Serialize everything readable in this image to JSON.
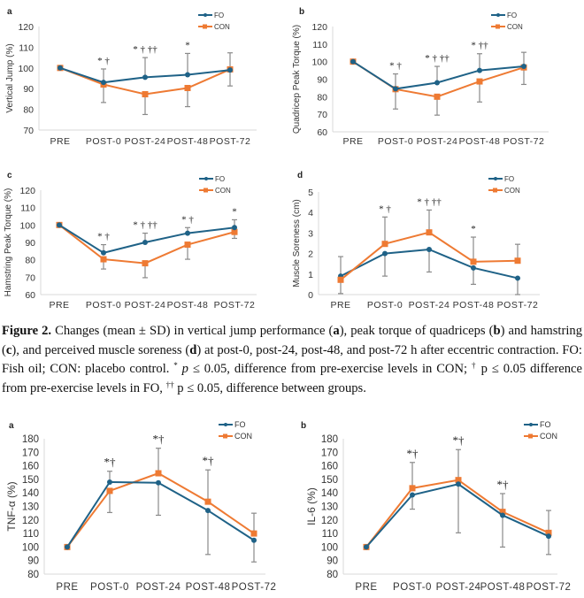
{
  "colors": {
    "FO": "#1f6287",
    "CON": "#ee7a33",
    "axis": "#d9d9d9",
    "errbar": "#8a8a8a"
  },
  "caption": {
    "figure_label": "Figure 2.",
    "segments": [
      {
        "t": " Changes (mean ± SD) in vertical jump performance ("
      },
      {
        "t": "a",
        "b": true
      },
      {
        "t": "), peak torque of quadriceps ("
      },
      {
        "t": "b",
        "b": true
      },
      {
        "t": ") and hamstring ("
      },
      {
        "t": "c",
        "b": true
      },
      {
        "t": "), and perceived muscle soreness ("
      },
      {
        "t": "d",
        "b": true
      },
      {
        "t": ") at post-0, post-24, post-48, and post-72 h after eccentric contraction. FO: Fish oil; CON: placebo control. "
      },
      {
        "t": "*",
        "sup": true
      },
      {
        "t": " "
      },
      {
        "t": "p",
        "i": true
      },
      {
        "t": " ≤ 0.05, difference from pre-exercise levels in CON; "
      },
      {
        "t": "†",
        "sup": true
      },
      {
        "t": " p ≤ 0.05 difference from pre-exercise levels in FO, "
      },
      {
        "t": "††",
        "sup": true
      },
      {
        "t": " p ≤ 0.05, difference between groups."
      }
    ]
  },
  "chart_data": [
    {
      "id": "a",
      "type": "line",
      "panel_label": "a",
      "ylabel": "Vertical Jump (%)",
      "xlabel": "",
      "categories": [
        "PRE",
        "POST-0",
        "POST-24",
        "POST-48",
        "POST-72"
      ],
      "ylim": [
        70,
        120
      ],
      "yticks": [
        70,
        80,
        90,
        100,
        110,
        120
      ],
      "grid": false,
      "legend": "top-right",
      "series": [
        {
          "name": "FO",
          "values": [
            100,
            93,
            95.5,
            96.7,
            99
          ],
          "err_up": [
            null,
            99.5,
            105,
            107,
            107.3
          ],
          "err_down": [
            null,
            null,
            null,
            null,
            null
          ]
        },
        {
          "name": "CON",
          "values": [
            100,
            92,
            87.3,
            90.3,
            99.3
          ],
          "err_up": [
            null,
            null,
            null,
            null,
            null
          ],
          "err_down": [
            null,
            83.3,
            77.5,
            81.3,
            91.3
          ]
        }
      ],
      "annotations": [
        "",
        "* †",
        "* † ††",
        "*",
        ""
      ]
    },
    {
      "id": "b",
      "type": "line",
      "panel_label": "b",
      "ylabel": "Quadricep Peak Torque (%)",
      "xlabel": "",
      "categories": [
        "PRE",
        "POST-0",
        "POST-24",
        "POST-48",
        "POST-72"
      ],
      "ylim": [
        60,
        120
      ],
      "yticks": [
        60,
        70,
        80,
        90,
        100,
        110,
        120
      ],
      "grid": false,
      "legend": "top-right",
      "series": [
        {
          "name": "FO",
          "values": [
            100,
            84.5,
            88,
            95,
            97.3
          ],
          "err_up": [
            null,
            93,
            97.3,
            104.5,
            105.3
          ],
          "err_down": [
            null,
            null,
            null,
            null,
            null
          ]
        },
        {
          "name": "CON",
          "values": [
            100,
            84.3,
            80,
            88.7,
            96.7
          ],
          "err_up": [
            null,
            null,
            null,
            null,
            null
          ],
          "err_down": [
            null,
            73,
            69.5,
            77,
            87
          ]
        }
      ],
      "annotations": [
        "",
        "* †",
        "* † ††",
        "* ††",
        ""
      ]
    },
    {
      "id": "c",
      "type": "line",
      "panel_label": "c",
      "ylabel": "Hamstring Peak Torque (%)",
      "xlabel": "",
      "categories": [
        "PRE",
        "POST-0",
        "POST-24",
        "POST-48",
        "POST-72"
      ],
      "ylim": [
        60,
        120
      ],
      "yticks": [
        60,
        70,
        80,
        90,
        100,
        110,
        120
      ],
      "grid": false,
      "legend": "top-right",
      "series": [
        {
          "name": "FO",
          "values": [
            100,
            84,
            90,
            95.3,
            98.5
          ],
          "err_up": [
            null,
            88.7,
            95.3,
            98.5,
            103
          ],
          "err_down": [
            null,
            null,
            null,
            null,
            null
          ]
        },
        {
          "name": "CON",
          "values": [
            100,
            80.3,
            78,
            88.7,
            96
          ],
          "err_up": [
            null,
            null,
            null,
            null,
            null
          ],
          "err_down": [
            null,
            74.7,
            69.7,
            80.3,
            92.3
          ]
        }
      ],
      "annotations": [
        "",
        "* †",
        "* † ††",
        "* †",
        "*"
      ]
    },
    {
      "id": "d",
      "type": "line",
      "panel_label": "d",
      "ylabel": "Muscle Soreness (cm)",
      "xlabel": "",
      "categories": [
        "PRE",
        "POST-0",
        "POST-24",
        "POST-48",
        "POST-72"
      ],
      "ylim": [
        0,
        5
      ],
      "yticks": [
        0,
        1,
        2,
        3,
        4,
        5
      ],
      "grid": false,
      "legend": "top-right",
      "series": [
        {
          "name": "FO",
          "values": [
            0.9,
            2.0,
            2.2,
            1.3,
            0.8
          ],
          "err_up": [
            1.85,
            null,
            null,
            null,
            null
          ],
          "err_down": [
            0.05,
            0.9,
            1.1,
            0.5,
            0
          ]
        },
        {
          "name": "CON",
          "values": [
            0.72,
            2.47,
            3.03,
            1.6,
            1.65
          ],
          "err_up": [
            null,
            3.78,
            4.12,
            2.8,
            2.45
          ],
          "err_down": [
            null,
            null,
            null,
            null,
            null
          ]
        }
      ],
      "annotations": [
        "",
        "* †",
        "* † ††",
        "*",
        ""
      ]
    },
    {
      "id": "e",
      "type": "line",
      "panel_label": "a",
      "ylabel": "TNF-α (%)",
      "xlabel": "",
      "categories": [
        "PRE",
        "POST-0",
        "POST-24",
        "POST-48",
        "POST-72"
      ],
      "ylim": [
        80,
        180
      ],
      "yticks": [
        80,
        90,
        100,
        110,
        120,
        130,
        140,
        150,
        160,
        170,
        180
      ],
      "grid": false,
      "legend": "top-right",
      "series": [
        {
          "name": "FO",
          "values": [
            100,
            148,
            147.5,
            127,
            105
          ],
          "err_up": [
            null,
            156,
            null,
            null,
            null
          ],
          "err_down": [
            null,
            null,
            123.5,
            94.5,
            89
          ]
        },
        {
          "name": "CON",
          "values": [
            100,
            141.5,
            154.5,
            133.5,
            110
          ],
          "err_up": [
            null,
            null,
            173,
            157,
            125
          ],
          "err_down": [
            null,
            125.5,
            null,
            null,
            null
          ]
        }
      ],
      "annotations": [
        "",
        "*†",
        "*†",
        "*†",
        ""
      ]
    },
    {
      "id": "f",
      "type": "line",
      "panel_label": "b",
      "ylabel": "IL-6 (%)",
      "xlabel": "",
      "categories": [
        "PRE",
        "POST-0",
        "POST-24",
        "POST-48",
        "POST-72"
      ],
      "ylim": [
        80,
        180
      ],
      "yticks": [
        80,
        90,
        100,
        110,
        120,
        130,
        140,
        150,
        160,
        170,
        180
      ],
      "grid": false,
      "legend": "top-right",
      "series": [
        {
          "name": "FO",
          "values": [
            100,
            138.5,
            146.5,
            123.5,
            108
          ],
          "err_up": [
            null,
            null,
            null,
            null,
            null
          ],
          "err_down": [
            null,
            128,
            110.5,
            100,
            94.5
          ]
        },
        {
          "name": "CON",
          "values": [
            100,
            143.5,
            149.5,
            126,
            110.5
          ],
          "err_up": [
            null,
            162.5,
            172,
            139.5,
            127
          ],
          "err_down": [
            null,
            null,
            null,
            null,
            null
          ]
        }
      ],
      "annotations": [
        "",
        "*†",
        "*†",
        "*†",
        ""
      ]
    }
  ]
}
